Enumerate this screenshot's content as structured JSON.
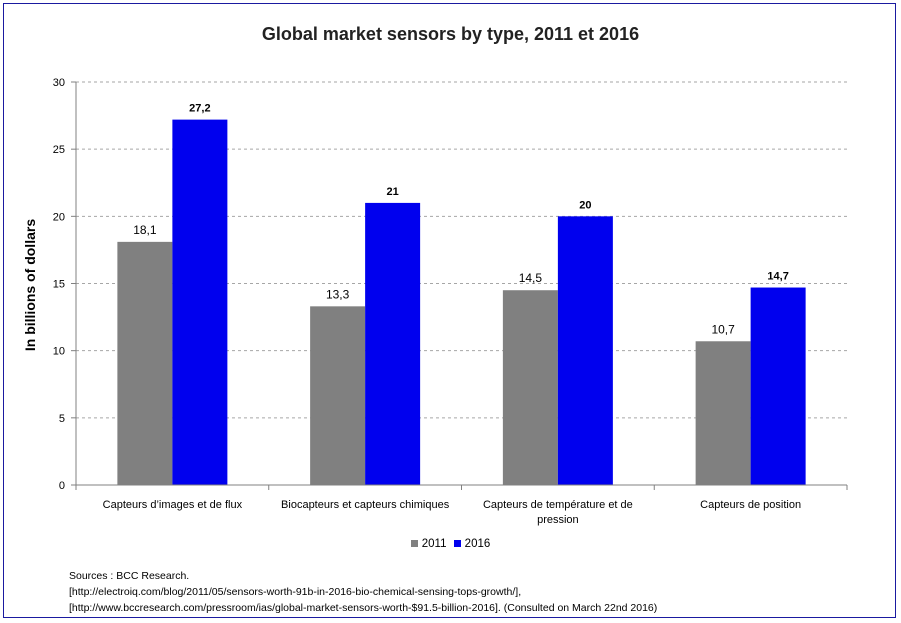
{
  "chart_data": {
    "type": "bar",
    "title": "Global market sensors by type, 2011 et 2016",
    "ylabel": "In billions of dollars",
    "xlabel": "",
    "ylim": [
      0,
      30
    ],
    "yticks": [
      0,
      5,
      10,
      15,
      20,
      25,
      30
    ],
    "grid": true,
    "legend_position": "bottom",
    "categories": [
      [
        "Capteurs d’images et de flux"
      ],
      [
        "Biocapteurs et capteurs chimiques"
      ],
      [
        "Capteurs de température et de",
        "pression"
      ],
      [
        "Capteurs de position"
      ]
    ],
    "series": [
      {
        "name": "2011",
        "color": "#808080",
        "values": [
          18.1,
          13.3,
          14.5,
          10.7
        ],
        "labels": [
          "18,1",
          "13,3",
          "14,5",
          "10,7"
        ],
        "label_bold": false
      },
      {
        "name": "2016",
        "color": "#0000ee",
        "values": [
          27.2,
          21,
          20,
          14.7
        ],
        "labels": [
          "27,2",
          "21",
          "20",
          "14,7"
        ],
        "label_bold": true
      }
    ]
  },
  "sources": [
    "Sources : BCC Research.",
    "[http://electroiq.com/blog/2011/05/sensors-worth-91b-in-2016-bio-chemical-sensing-tops-growth/],",
    "[http://www.bccresearch.com/pressroom/ias/global-market-sensors-worth-$91.5-billion-2016]. (Consulted on March 22nd 2016)"
  ]
}
